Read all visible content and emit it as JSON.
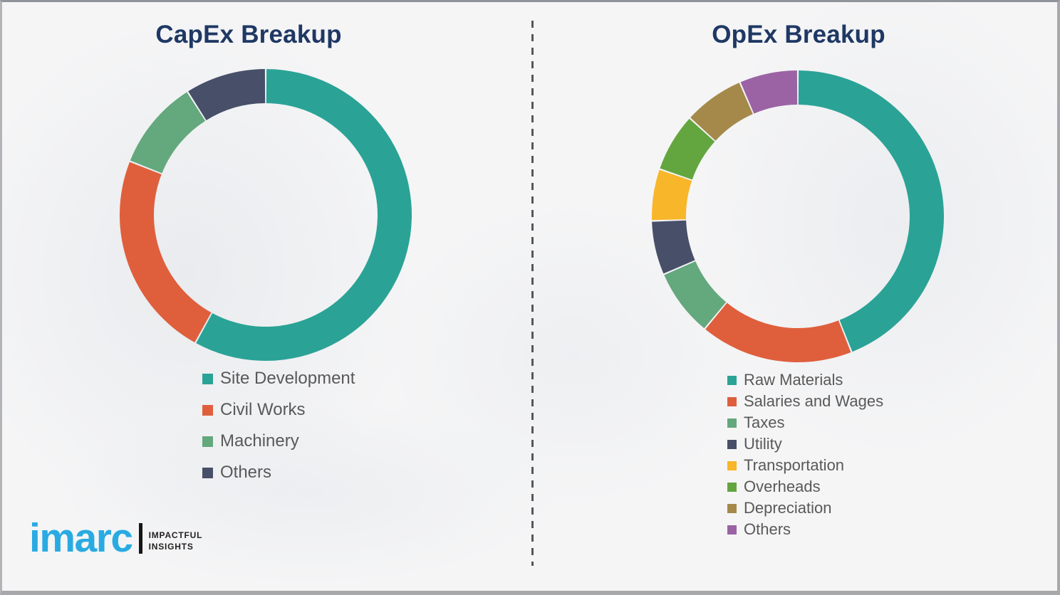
{
  "page": {
    "background_color": "#f5f5f6",
    "frame_border_color": "#a7a9ac"
  },
  "divider": {
    "style": "dashed-vertical",
    "color": "#55575a"
  },
  "styles": {
    "title_color": "#1F3864",
    "legend_text_color": "#595959"
  },
  "chart_data": [
    {
      "type": "pie",
      "subtype": "donut",
      "title": "CapEx Breakup",
      "categories": [
        "Site Development",
        "Civil Works",
        "Machinery",
        "Others"
      ],
      "values": [
        58,
        23,
        10,
        9
      ],
      "unit": "% (estimated from arc angles; no data labels shown)",
      "colors": [
        "#2AA396",
        "#DF5F3D",
        "#64A87D",
        "#474F69"
      ],
      "start_angle_deg": 0,
      "direction": "clockwise",
      "legend_position": "bottom"
    },
    {
      "type": "pie",
      "subtype": "donut",
      "title": "OpEx Breakup",
      "categories": [
        "Raw Materials",
        "Salaries and Wages",
        "Taxes",
        "Utility",
        "Transportation",
        "Overheads",
        "Depreciation",
        "Others"
      ],
      "values": [
        44,
        17,
        7.5,
        6,
        5.75,
        6.5,
        6.75,
        6.5
      ],
      "unit": "% (estimated from arc angles; no data labels shown)",
      "colors": [
        "#2AA396",
        "#DF5F3D",
        "#64A87D",
        "#474F69",
        "#F8B62A",
        "#63A63F",
        "#A5894A",
        "#9B63A4"
      ],
      "start_angle_deg": 0,
      "direction": "clockwise",
      "legend_position": "bottom"
    }
  ],
  "logo": {
    "brand": "imarc",
    "tagline_line1": "IMPACTFUL",
    "tagline_line2": "INSIGHTS",
    "brand_color": "#29ABE2",
    "tagline_color": "#231F20"
  }
}
